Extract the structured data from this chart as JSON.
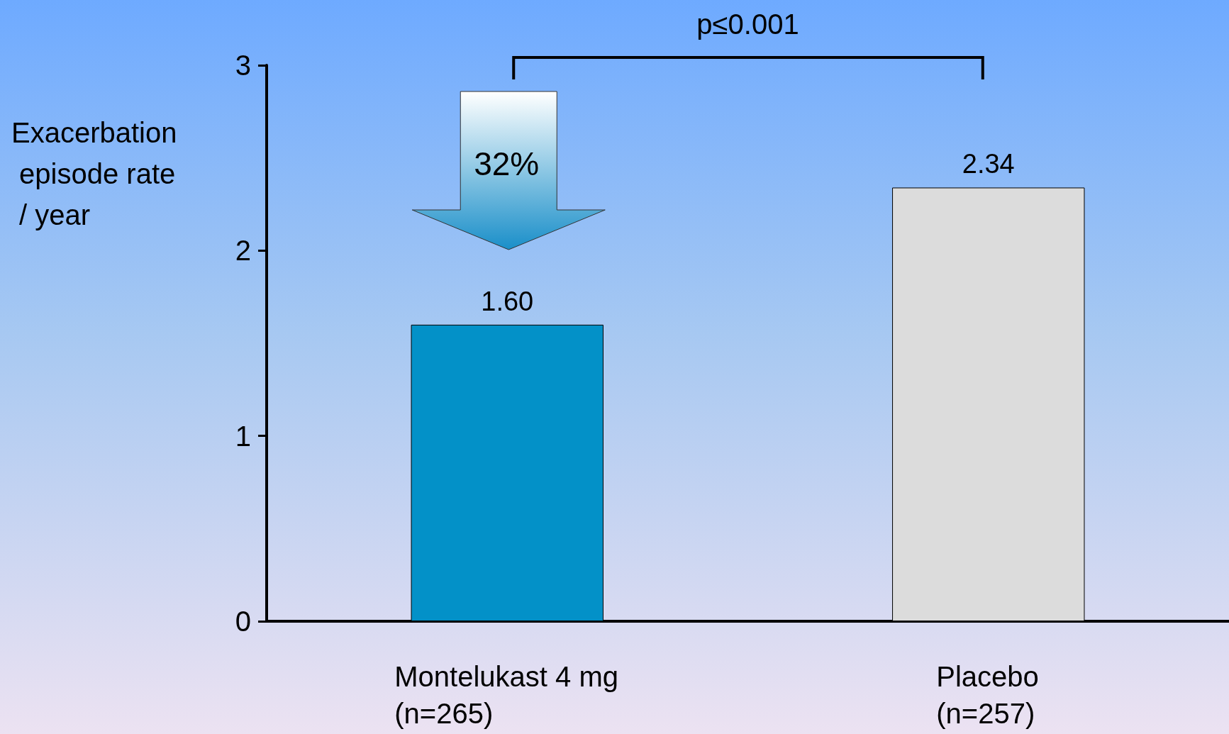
{
  "chart_data": {
    "type": "bar",
    "ylabel": "Exacerbation episode rate / year",
    "categories": [
      "Montelukast 4 mg\n(n=265)",
      "Placebo\n(n=257)"
    ],
    "values": [
      1.6,
      2.34
    ],
    "value_labels": [
      "1.60",
      "2.34"
    ],
    "colors": [
      "#0391c8",
      "#dcdcdc"
    ],
    "ylim": [
      0,
      3
    ],
    "yticks": [
      0,
      1,
      2,
      3
    ],
    "grid": false,
    "annotations": [
      "p≤0.001",
      "32%"
    ]
  }
}
